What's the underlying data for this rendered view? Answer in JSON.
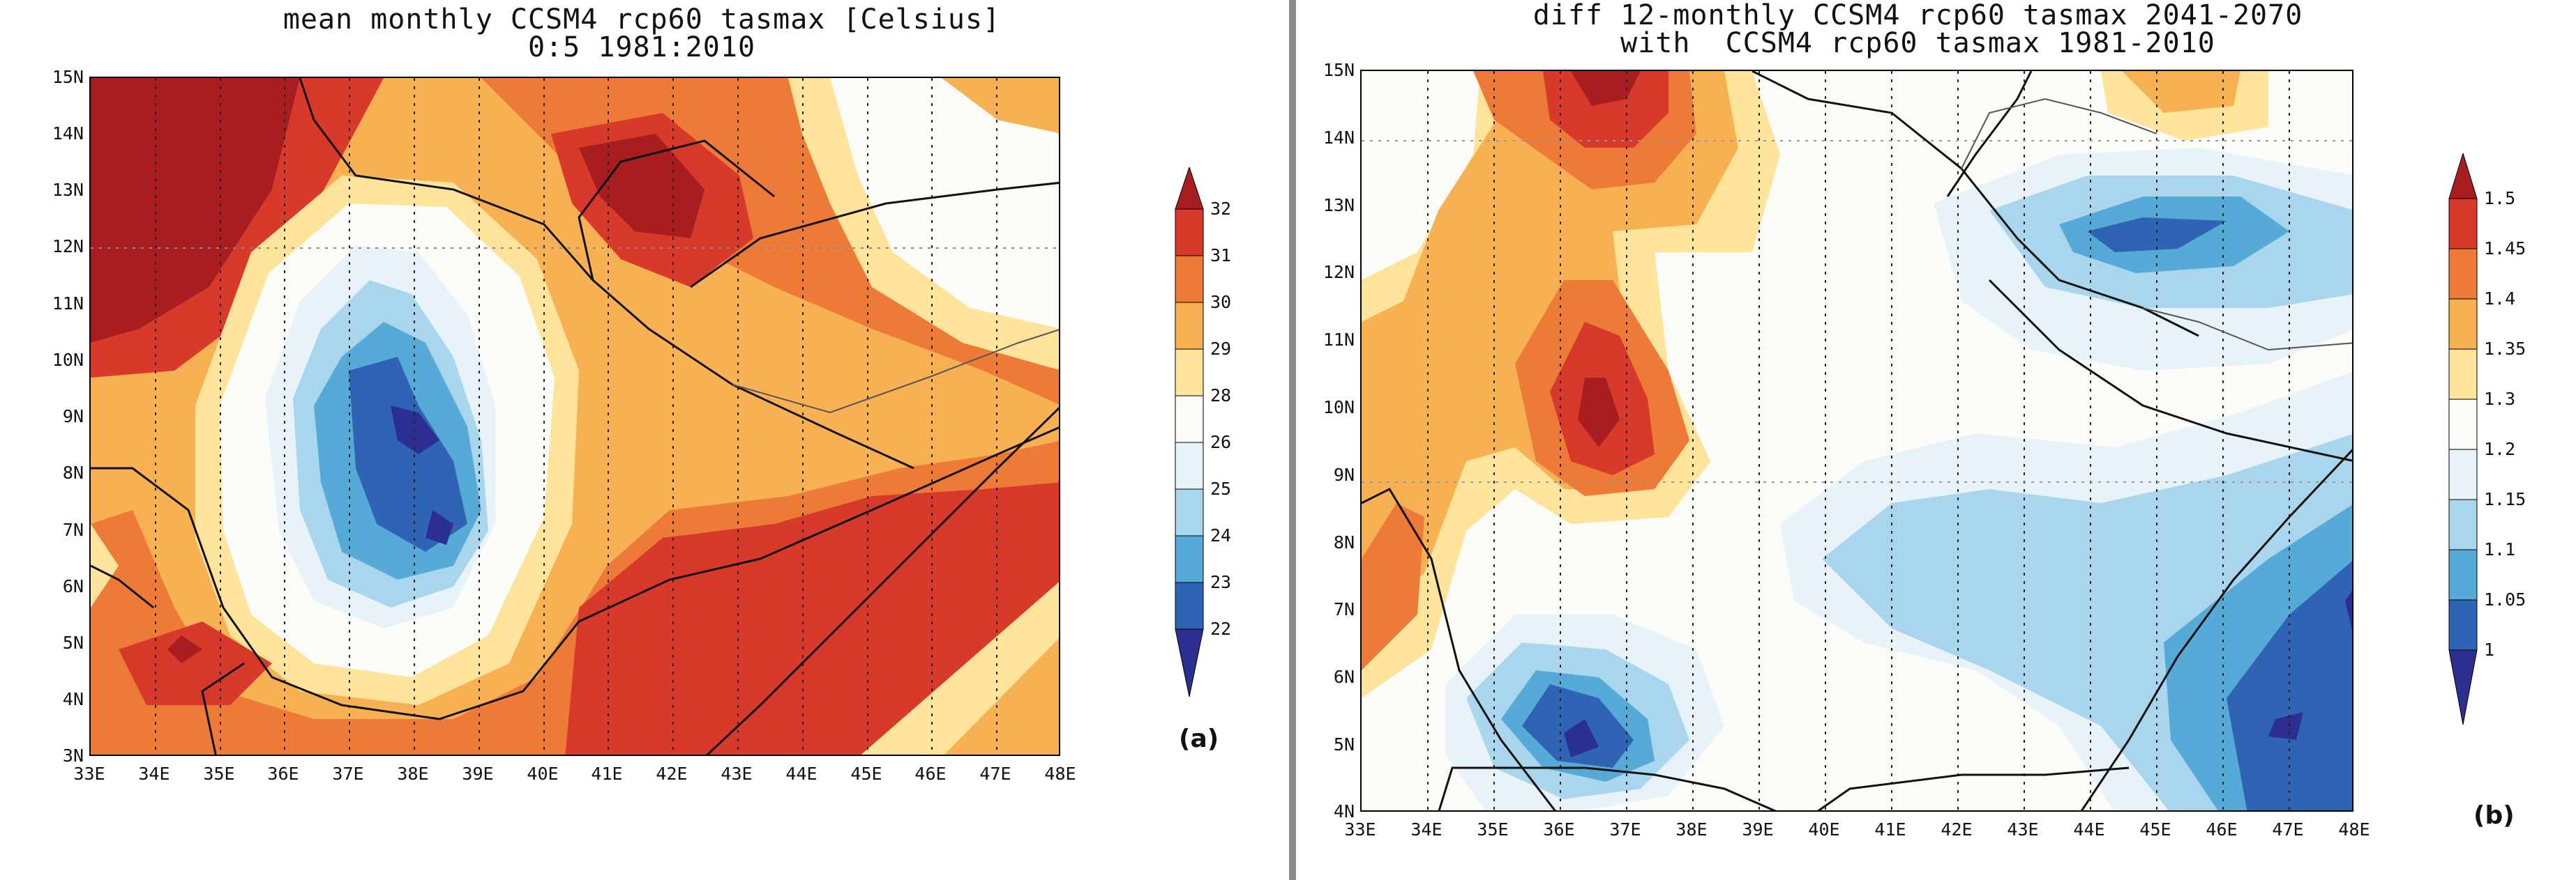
{
  "panel_a": {
    "title_line1": "mean monthly CCSM4 rcp60 tasmax [Celsius]",
    "title_line2": "0:5 1981:2010",
    "y_ticks": [
      "15N",
      "14N",
      "13N",
      "12N",
      "11N",
      "10N",
      "9N",
      "8N",
      "7N",
      "6N",
      "5N",
      "4N",
      "3N"
    ],
    "x_ticks": [
      "33E",
      "34E",
      "35E",
      "36E",
      "37E",
      "38E",
      "39E",
      "40E",
      "41E",
      "42E",
      "43E",
      "44E",
      "45E",
      "46E",
      "47E",
      "48E"
    ],
    "colorbar_labels": [
      "32",
      "31",
      "30",
      "29",
      "28",
      "26",
      "25",
      "24",
      "23",
      "22"
    ],
    "label": "(a)"
  },
  "panel_b": {
    "title_line1": "diff 12-monthly CCSM4 rcp60 tasmax 2041-2070",
    "title_line2": "with  CCSM4 rcp60 tasmax 1981-2010",
    "y_ticks": [
      "15N",
      "14N",
      "13N",
      "12N",
      "11N",
      "10N",
      "9N",
      "8N",
      "7N",
      "6N",
      "5N",
      "4N"
    ],
    "x_ticks": [
      "33E",
      "34E",
      "35E",
      "36E",
      "37E",
      "38E",
      "39E",
      "40E",
      "41E",
      "42E",
      "43E",
      "44E",
      "45E",
      "46E",
      "47E",
      "48E"
    ],
    "colorbar_labels": [
      "1.5",
      "1.45",
      "1.4",
      "1.35",
      "1.3",
      "1.2",
      "1.15",
      "1.1",
      "1.05",
      "1"
    ],
    "label": "(b)"
  },
  "palette": [
    "#2c2f8f",
    "#2f63b3",
    "#56aad8",
    "#a9d6ec",
    "#e7f3f9",
    "#fbfbf8",
    "#fde49a",
    "#f8b152",
    "#ee7a37",
    "#d7392a",
    "#a81d1f"
  ]
}
